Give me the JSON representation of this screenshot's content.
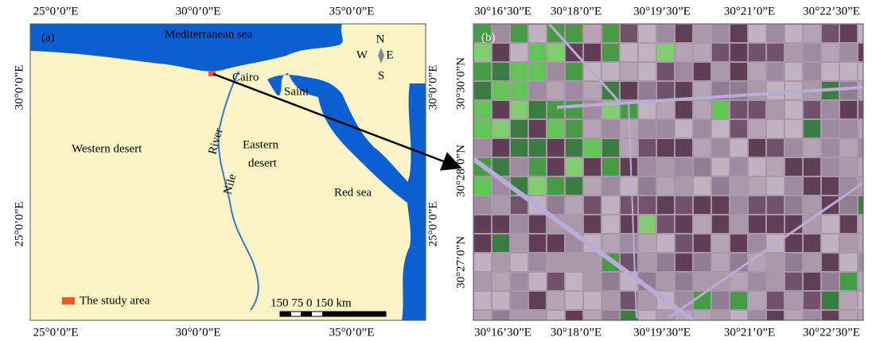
{
  "panel_a": {
    "label": "(a)",
    "top_ticks": [
      "25°0’0”E",
      "30°0’0”E",
      "35°0’0”E"
    ],
    "bottom_ticks": [
      "25°0’0”E",
      "30°0’0”E",
      "35°0’0”E"
    ],
    "left_ticks": [
      "30°0’0”E",
      "25°0’0”E"
    ],
    "right_ticks": [
      "30°0’0”E",
      "25°0’0”E"
    ],
    "places": {
      "sea_north": "Mediterranean sea",
      "cairo": "Cairo",
      "saini": "Saini",
      "western": "Western desert",
      "river": "River",
      "nile": "Nile",
      "eastern_1": "Eastern",
      "eastern_2": "desert",
      "red_sea": "Red sea"
    },
    "compass": {
      "n": "N",
      "w": "W",
      "e": "E",
      "s": "S"
    },
    "legend": "The study area",
    "scale": "150 75 0 150 km"
  },
  "panel_b": {
    "label": "(b)",
    "top_ticks": [
      "30°16’30”E",
      "30°18’0”E",
      "30°19’30”E",
      "30°21’0”E",
      "30°22’30”E"
    ],
    "bottom_ticks": [
      "30°16’30”E",
      "30°18’0”E",
      "30°19’30”E",
      "30°21’0”E",
      "30°22’30”E"
    ],
    "left_ticks": [
      "30°30’0”N",
      "30°28’0”N",
      "30°27’0”N"
    ]
  }
}
